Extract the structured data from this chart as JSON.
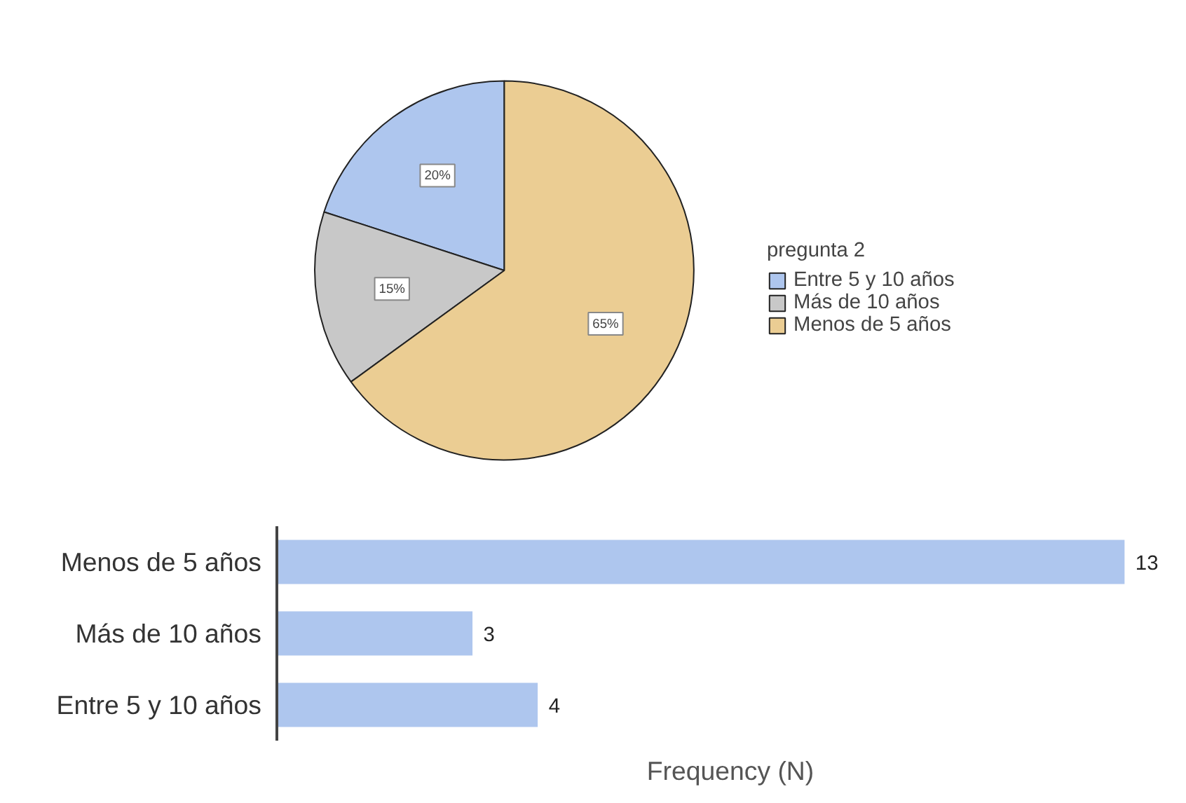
{
  "chart_data": [
    {
      "type": "pie",
      "legend_title": "pregunta 2",
      "legend": "right",
      "categories": [
        "Entre 5 y 10 años",
        "Más de 10 años",
        "Menos de 5 años"
      ],
      "values": [
        20,
        15,
        65
      ],
      "colors": [
        "#aec6ee",
        "#c8c8c8",
        "#ebcd93"
      ],
      "value_labels": [
        "20%",
        "15%",
        "65%"
      ]
    },
    {
      "type": "bar",
      "orientation": "horizontal",
      "categories": [
        "Menos de 5 años",
        "Más de 10 años",
        "Entre 5 y 10 años"
      ],
      "values": [
        13,
        3,
        4
      ],
      "color": "#aec6ee",
      "data_labels": true,
      "xlabel": "Frequency (N)",
      "tick_labels": "y"
    }
  ]
}
